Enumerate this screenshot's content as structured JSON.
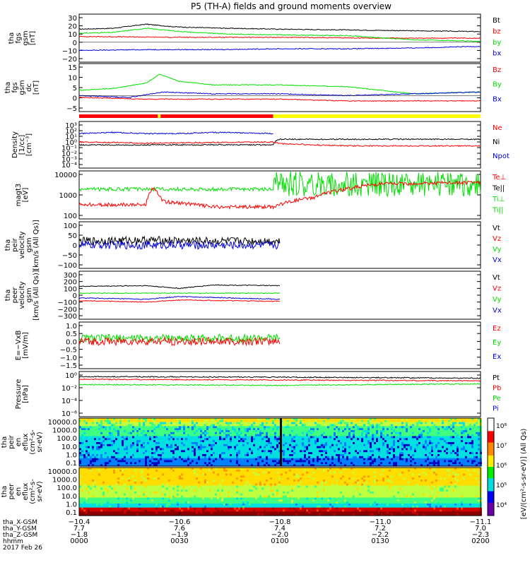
{
  "title": "P5 (TH-A) fields and ground moments overview",
  "colors": {
    "black": "#000000",
    "red": "#ff0000",
    "green": "#00e000",
    "blue": "#0000e0",
    "yellow": "#ffff00"
  },
  "chart_data": [
    {
      "type": "line",
      "panel": "fgs_gsm",
      "ylabel": [
        "tha",
        "fgs",
        "gsm",
        "[nT]"
      ],
      "ylim": [
        -20,
        30
      ],
      "yticks": [
        "30",
        "20",
        "10",
        "0",
        "−10",
        "−20"
      ],
      "legend": [
        {
          "name": "Bt",
          "color": "#000000"
        },
        {
          "name": "bz",
          "color": "#ff0000"
        },
        {
          "name": "by",
          "color": "#00e000"
        },
        {
          "name": "bx",
          "color": "#0000e0"
        }
      ],
      "series": [
        {
          "name": "Bt",
          "x": [
            0,
            10,
            20,
            28,
            34,
            45,
            60,
            80,
            100,
            120
          ],
          "y": [
            16,
            17,
            22,
            19,
            18,
            17,
            16,
            15,
            14,
            13
          ]
        },
        {
          "name": "bz",
          "x": [
            0,
            30,
            60,
            90,
            120
          ],
          "y": [
            7,
            6,
            6,
            5,
            5
          ]
        },
        {
          "name": "by",
          "x": [
            0,
            10,
            20,
            28,
            34,
            45,
            60,
            80,
            100,
            120
          ],
          "y": [
            11,
            12,
            17,
            14,
            12,
            10,
            9,
            8,
            3,
            1
          ]
        },
        {
          "name": "bx",
          "x": [
            0,
            20,
            40,
            60,
            80,
            100,
            120
          ],
          "y": [
            -10,
            -9,
            -9,
            -8,
            -8,
            -7,
            -5
          ]
        }
      ]
    },
    {
      "type": "line",
      "panel": "fgs_gsm_dc",
      "ylabel": [
        "tha",
        "fgs",
        "gsm",
        "dc",
        "[nT]"
      ],
      "ylim": [
        -7,
        16
      ],
      "yticks": [
        "15",
        "10",
        "5",
        "0",
        "−5"
      ],
      "legend": [
        {
          "name": "Bz",
          "color": "#ff0000"
        },
        {
          "name": "By",
          "color": "#00e000"
        },
        {
          "name": "Bx",
          "color": "#0000e0"
        }
      ],
      "series": [
        {
          "name": "By",
          "x": [
            0,
            10,
            20,
            24,
            30,
            40,
            60,
            80,
            100,
            120
          ],
          "y": [
            3,
            4,
            7,
            12,
            8,
            6,
            6,
            5,
            1,
            2
          ]
        },
        {
          "name": "Bx",
          "x": [
            0,
            15,
            25,
            40,
            60,
            80,
            100,
            120
          ],
          "y": [
            0,
            -1,
            2,
            1,
            1,
            0,
            1,
            2
          ]
        },
        {
          "name": "Bz",
          "x": [
            0,
            20,
            40,
            60,
            80,
            100,
            120
          ],
          "y": [
            -1,
            -2,
            -2,
            -2,
            -3,
            -3,
            -3
          ]
        }
      ]
    },
    {
      "type": "line",
      "panel": "density",
      "ylabel": [
        "Density",
        "[1/cc]",
        "[cm⁻³]"
      ],
      "log": true,
      "yticks": [
        "10³",
        "10²",
        "10¹",
        "10⁰",
        "10⁻¹",
        "10⁻²",
        "10⁻³",
        "10⁻⁴"
      ],
      "legend": [
        {
          "name": "Ne",
          "color": "#ff0000"
        },
        {
          "name": "Ni",
          "color": "#000000"
        },
        {
          "name": "Npot",
          "color": "#0000e0"
        }
      ],
      "series": [
        {
          "name": "Ni",
          "x": [
            0,
            30,
            58,
            60,
            90,
            120
          ],
          "y": [
            0.3,
            0.3,
            0.3,
            3,
            3,
            3
          ]
        },
        {
          "name": "Npot",
          "x": [
            0,
            10,
            20,
            30,
            40,
            58
          ],
          "y": [
            30,
            50,
            30,
            30,
            50,
            30
          ]
        },
        {
          "name": "Ne",
          "x": [
            0,
            20,
            58,
            60,
            70,
            80,
            120
          ],
          "y": [
            1,
            0.6,
            1,
            0.5,
            0.3,
            0.2,
            0.2
          ]
        }
      ]
    },
    {
      "type": "line",
      "panel": "temperature",
      "ylabel": [
        "magt3",
        "[eV]"
      ],
      "log": true,
      "yticks": [
        "10000",
        "1000",
        "100"
      ],
      "legend": [
        {
          "name": "Te⊥",
          "color": "#ff0000"
        },
        {
          "name": "Te||",
          "color": "#000000"
        },
        {
          "name": "Ti⊥",
          "color": "#00e000"
        },
        {
          "name": "Ti||",
          "color": "#00e000"
        }
      ],
      "series": [
        {
          "name": "Ti||",
          "x": [
            0,
            20,
            40,
            58,
            60,
            120
          ],
          "y": [
            1500,
            1500,
            1500,
            1500,
            1500,
            1500
          ]
        },
        {
          "name": "Te⊥",
          "x": [
            0,
            20,
            22,
            25,
            40,
            58,
            70,
            80,
            90,
            120
          ],
          "y": [
            200,
            200,
            1500,
            300,
            150,
            150,
            500,
            1500,
            3000,
            3500
          ]
        }
      ]
    },
    {
      "type": "line",
      "panel": "peir_velocity",
      "ylabel": [
        "tha",
        "peir",
        "velocity",
        "gsm",
        "[km/s (All Qs)]"
      ],
      "ylim": [
        -100,
        100
      ],
      "yticks": [
        "100",
        "50",
        "0",
        "−50",
        "−100"
      ],
      "legend": [
        {
          "name": "Vt",
          "color": "#000000"
        },
        {
          "name": "Vz",
          "color": "#ff0000"
        },
        {
          "name": "Vy",
          "color": "#00e000"
        },
        {
          "name": "Vx",
          "color": "#0000e0"
        }
      ],
      "series": [
        {
          "name": "Vt",
          "x": [
            0,
            20,
            40,
            60
          ],
          "y": [
            20,
            25,
            20,
            20
          ]
        },
        {
          "name": "Vx",
          "x": [
            0,
            20,
            40,
            60
          ],
          "y": [
            0,
            0,
            0,
            0
          ]
        }
      ]
    },
    {
      "type": "line",
      "panel": "peer_velocity",
      "ylabel": [
        "tha",
        "peer",
        "velocity",
        "gsm",
        "[km/s (All Qs)]"
      ],
      "ylim": [
        -300,
        300
      ],
      "yticks": [
        "300",
        "200",
        "100",
        "0",
        "−100",
        "−200",
        "−300"
      ],
      "legend": [
        {
          "name": "Vt",
          "color": "#000000"
        },
        {
          "name": "Vz",
          "color": "#ff0000"
        },
        {
          "name": "Vy",
          "color": "#00e000"
        },
        {
          "name": "Vx",
          "color": "#0000e0"
        }
      ],
      "series": [
        {
          "name": "Vt",
          "x": [
            0,
            20,
            30,
            40,
            60
          ],
          "y": [
            130,
            140,
            100,
            150,
            140
          ]
        },
        {
          "name": "Vy",
          "x": [
            0,
            60
          ],
          "y": [
            30,
            30
          ]
        },
        {
          "name": "Vx",
          "x": [
            0,
            20,
            30,
            60
          ],
          "y": [
            -40,
            -60,
            -20,
            -60
          ]
        },
        {
          "name": "Vz",
          "x": [
            0,
            20,
            30,
            60
          ],
          "y": [
            -80,
            -100,
            -70,
            -90
          ]
        }
      ]
    },
    {
      "type": "line",
      "panel": "e_field",
      "ylabel": [
        "E=−VxB",
        "[mV/m]"
      ],
      "ylim": [
        -1.5,
        1.0
      ],
      "yticks": [
        "1.0",
        "0.5",
        "0.0",
        "−0.5",
        "−1.0",
        "−1.5"
      ],
      "legend": [
        {
          "name": "Ez",
          "color": "#ff0000"
        },
        {
          "name": "Ey",
          "color": "#00e000"
        },
        {
          "name": "Ex",
          "color": "#0000e0"
        }
      ],
      "series": [
        {
          "name": "Ey",
          "x": [
            0,
            60
          ],
          "y": [
            0.2,
            0.2
          ]
        },
        {
          "name": "Ez",
          "x": [
            0,
            60
          ],
          "y": [
            0,
            0
          ]
        }
      ]
    },
    {
      "type": "line",
      "panel": "pressure",
      "ylabel": [
        "Pressure",
        "[nPa]"
      ],
      "log": true,
      "yticks": [
        "10⁰",
        "10⁻²",
        "10⁻⁴",
        "10⁻⁶"
      ],
      "legend": [
        {
          "name": "Pt",
          "color": "#000000"
        },
        {
          "name": "Pb",
          "color": "#ff0000"
        },
        {
          "name": "Pe",
          "color": "#00e000"
        },
        {
          "name": "Pi",
          "color": "#0000e0"
        }
      ],
      "series": [
        {
          "name": "Pt",
          "x": [
            0,
            120
          ],
          "y": [
            1,
            0.5
          ]
        },
        {
          "name": "Pb",
          "x": [
            0,
            120
          ],
          "y": [
            0.3,
            0.15
          ]
        },
        {
          "name": "Pe",
          "x": [
            0,
            60,
            120
          ],
          "y": [
            0.03,
            0.02,
            0.04
          ]
        }
      ]
    },
    {
      "type": "heatmap",
      "panel": "peir_eflux",
      "ylabel": [
        "tha",
        "peir",
        "en",
        "eflux",
        "(cm²-s-",
        "sr-eV)"
      ],
      "yticks": [
        "10000.0",
        "1000.0",
        "100.0",
        "10.0",
        "1.0",
        "0.1"
      ]
    },
    {
      "type": "heatmap",
      "panel": "peer_eflux",
      "ylabel": [
        "tha",
        "peer",
        "en",
        "eflux",
        "(cm²-s-",
        "sr-eV)"
      ],
      "yticks": [
        "10000.0",
        "1000.0",
        "100.0",
        "10.0",
        "1.0",
        "0.1"
      ],
      "colorbar": {
        "label": "[eV/(cm²-s-sr-eV)] (All Qs)",
        "ticks": [
          "10⁸",
          "10⁷",
          "10⁶",
          "10⁵",
          "10⁴"
        ]
      }
    }
  ],
  "x_axis": {
    "row_labels": [
      "tha_X-GSM",
      "tha_Y-GSM",
      "tha_Z-GSM",
      "hhmm",
      "2017 Feb 26"
    ],
    "columns": [
      [
        "−10.4",
        "7.7",
        "−1.8",
        "0000"
      ],
      [
        "−10.6",
        "7.6",
        "−1.9",
        "0030"
      ],
      [
        "−10.8",
        "7.4",
        "−2.0",
        "0100"
      ],
      [
        "−11.0",
        "7.2",
        "−2.2",
        "0130"
      ],
      [
        "−11.1",
        "7.0",
        "−2.3",
        "0200"
      ]
    ]
  }
}
